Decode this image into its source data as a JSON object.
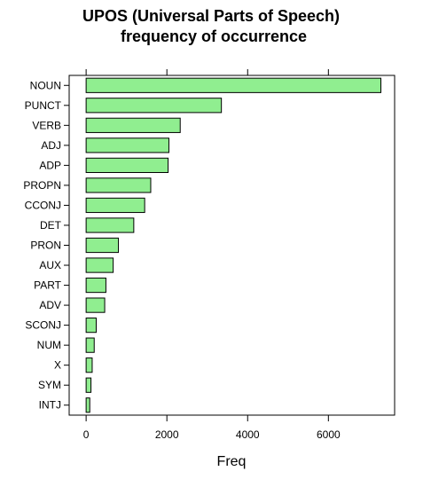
{
  "chart_data": {
    "type": "bar",
    "orientation": "horizontal",
    "title_lines": [
      "UPOS (Universal Parts of Speech)",
      "frequency of occurrence"
    ],
    "xlabel": "Freq",
    "ylabel": "",
    "categories": [
      "NOUN",
      "PUNCT",
      "VERB",
      "ADJ",
      "ADP",
      "PROPN",
      "CCONJ",
      "DET",
      "PRON",
      "AUX",
      "PART",
      "ADV",
      "SCONJ",
      "NUM",
      "X",
      "SYM",
      "INTJ"
    ],
    "values": [
      7300,
      3350,
      2330,
      2050,
      2030,
      1600,
      1450,
      1180,
      800,
      670,
      490,
      460,
      250,
      200,
      150,
      120,
      90
    ],
    "x_ticks": [
      0,
      2000,
      4000,
      6000
    ],
    "xlim": [
      -420,
      7640
    ],
    "bar_color": "#90ee90",
    "bar_stroke": "#000000",
    "grid": false,
    "legend": "none"
  }
}
